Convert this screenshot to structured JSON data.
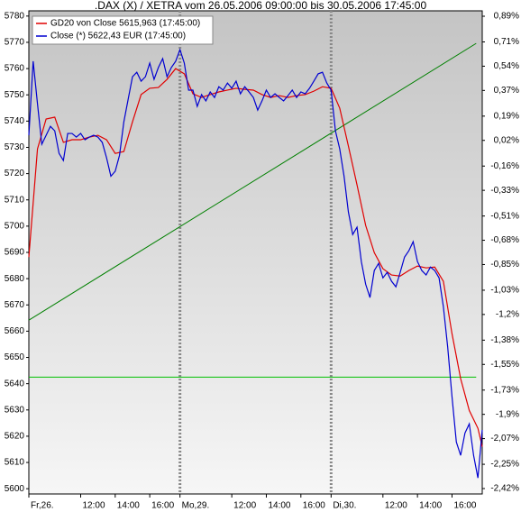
{
  "chart_data": {
    "type": "line",
    "title": ".DAX (X) / XETRA vom 26.05.2006 09:00:00 bis 30.05.2006 17:45:00",
    "series": [
      {
        "name": "GD20 von Close 5615,963 (17:45:00)",
        "color": "#e00000",
        "x": [
          0,
          0.5,
          1,
          1.5,
          2,
          2.5,
          3,
          3.5,
          4,
          4.5,
          5,
          5.5,
          6,
          6.5,
          7,
          7.5,
          8,
          8.5,
          9,
          9.5,
          10,
          10.5,
          11,
          11.5,
          12,
          12.5,
          13,
          13.5,
          14,
          14.5,
          15,
          15.5,
          16,
          16.5,
          17,
          17.5,
          18,
          18.5,
          19,
          19.5,
          20,
          20.5,
          21,
          21.5,
          22,
          22.5,
          23,
          23.5,
          24,
          24.5,
          25,
          25.5,
          26,
          26.25
        ],
        "values": [
          5688.2,
          5729.4,
          5740.8,
          5741.5,
          5731.9,
          5732.9,
          5732.9,
          5733.9,
          5734.6,
          5732.9,
          5727.7,
          5728.4,
          5739.7,
          5750.1,
          5752.5,
          5752.8,
          5755.9,
          5760,
          5758,
          5750.4,
          5749,
          5750.1,
          5751.1,
          5751.8,
          5752.5,
          5752.1,
          5751.8,
          5750.1,
          5749,
          5749.7,
          5749,
          5749.7,
          5750.1,
          5751.4,
          5753.1,
          5752.5,
          5744.9,
          5730.5,
          5715.7,
          5700.3,
          5689.9,
          5683.8,
          5681.4,
          5681,
          5683.1,
          5684.8,
          5684.1,
          5684.4,
          5679,
          5659,
          5641.9,
          5629.8,
          5623,
          5616
        ]
      },
      {
        "name": "Close (*) 5622,43 EUR (17:45:00)",
        "color": "#0000d0",
        "x": [
          0,
          0.25,
          0.5,
          0.75,
          1,
          1.25,
          1.5,
          1.75,
          2,
          2.25,
          2.5,
          2.75,
          3,
          3.25,
          3.5,
          3.75,
          4,
          4.25,
          4.5,
          4.75,
          5,
          5.25,
          5.5,
          5.75,
          6,
          6.25,
          6.5,
          6.75,
          7,
          7.25,
          7.5,
          7.75,
          8,
          8.25,
          8.5,
          8.75,
          9,
          9.25,
          9.5,
          9.75,
          10,
          10.25,
          10.5,
          10.75,
          11,
          11.25,
          11.5,
          11.75,
          12,
          12.25,
          12.5,
          12.75,
          13,
          13.25,
          13.5,
          13.75,
          14,
          14.25,
          14.5,
          14.75,
          15,
          15.25,
          15.5,
          15.75,
          16,
          16.25,
          16.5,
          16.75,
          17,
          17.25,
          17.5,
          17.75,
          18,
          18.25,
          18.5,
          18.75,
          19,
          19.25,
          19.5,
          19.75,
          20,
          20.25,
          20.5,
          20.75,
          21,
          21.25,
          21.5,
          21.75,
          22,
          22.25,
          22.5,
          22.75,
          23,
          23.25,
          23.5,
          23.75,
          24,
          24.25,
          24.5,
          24.75,
          25,
          25.25,
          25.5,
          25.75,
          26,
          26.25
        ],
        "values": [
          5734.6,
          5762.8,
          5746.6,
          5731.2,
          5734.6,
          5738,
          5736.3,
          5727.7,
          5725,
          5735.3,
          5735.3,
          5733.9,
          5735.3,
          5732.9,
          5733.9,
          5734.6,
          5733.9,
          5731.9,
          5726,
          5719,
          5720.9,
          5727,
          5739.7,
          5748.3,
          5756.9,
          5758.6,
          5755.2,
          5756.9,
          5762.1,
          5755.9,
          5760.4,
          5763.8,
          5756.9,
          5760.4,
          5762.8,
          5767.2,
          5762.1,
          5751.8,
          5751.8,
          5745.6,
          5750.1,
          5747.7,
          5751.1,
          5749,
          5753.1,
          5751.8,
          5754.5,
          5752.5,
          5755.2,
          5750.4,
          5753.1,
          5751.1,
          5749,
          5744.2,
          5747.7,
          5751.8,
          5749,
          5750.4,
          5749,
          5747.7,
          5749.7,
          5751.8,
          5749,
          5751.1,
          5750.4,
          5752.5,
          5755.2,
          5758,
          5758.6,
          5754.5,
          5751.8,
          5736.3,
          5729.4,
          5719,
          5705.4,
          5696.8,
          5699.6,
          5686.5,
          5677.9,
          5672.8,
          5683.1,
          5685.8,
          5680.3,
          5682.4,
          5679,
          5676.9,
          5682.4,
          5688.2,
          5690.6,
          5694.1,
          5686.5,
          5683.1,
          5681.4,
          5684.4,
          5683.1,
          5680.3,
          5669.3,
          5653.9,
          5635,
          5617.8,
          5612.7,
          5621.2,
          5624.7,
          5612.7,
          5604.1,
          5622.4
        ]
      }
    ],
    "lines": [
      {
        "color": "#008000",
        "x": [
          0,
          25.9
        ],
        "values": [
          5664.2,
          5769.6
        ]
      },
      {
        "color": "#00c000",
        "x": [
          0,
          25.9
        ],
        "values": [
          5642.5,
          5642.5
        ]
      }
    ],
    "xlim": [
      0,
      26.25
    ],
    "xticks": [
      {
        "value": 0,
        "label": "Fr,26."
      },
      {
        "value": 3,
        "label": "12:00"
      },
      {
        "value": 5,
        "label": "14:00"
      },
      {
        "value": 7,
        "label": "16:00"
      },
      {
        "value": 8.75,
        "label": "Mo,29."
      },
      {
        "value": 11.75,
        "label": "12:00"
      },
      {
        "value": 13.75,
        "label": "14:00"
      },
      {
        "value": 15.75,
        "label": "16:00"
      },
      {
        "value": 17.5,
        "label": "Di,30."
      },
      {
        "value": 20.5,
        "label": "12:00"
      },
      {
        "value": 22.5,
        "label": "14:00"
      },
      {
        "value": 24.5,
        "label": "16:00"
      }
    ],
    "separators": [
      8.75,
      17.5
    ],
    "ylim": [
      5598,
      5782
    ],
    "yticks": [
      5600,
      5610,
      5620,
      5630,
      5640,
      5650,
      5660,
      5670,
      5680,
      5690,
      5700,
      5710,
      5720,
      5730,
      5740,
      5750,
      5760,
      5770,
      5780
    ],
    "y2lim": [
      -2.458,
      0.928
    ],
    "y2ticks": [
      {
        "value": 0.89,
        "label": "0,89%"
      },
      {
        "value": 0.71,
        "label": "0,71%"
      },
      {
        "value": 0.54,
        "label": "0,54%"
      },
      {
        "value": 0.37,
        "label": "0,37%"
      },
      {
        "value": 0.19,
        "label": "0,19%"
      },
      {
        "value": 0.02,
        "label": "0,02%"
      },
      {
        "value": -0.16,
        "label": "-0,16%"
      },
      {
        "value": -0.33,
        "label": "-0,33%"
      },
      {
        "value": -0.51,
        "label": "-0,51%"
      },
      {
        "value": -0.68,
        "label": "-0,68%"
      },
      {
        "value": -0.85,
        "label": "-0,85%"
      },
      {
        "value": -1.03,
        "label": "-1,03%"
      },
      {
        "value": -1.2,
        "label": "-1,2%"
      },
      {
        "value": -1.38,
        "label": "-1,38%"
      },
      {
        "value": -1.55,
        "label": "-1,55%"
      },
      {
        "value": -1.73,
        "label": "-1,73%"
      },
      {
        "value": -1.9,
        "label": "-1,9%"
      },
      {
        "value": -2.07,
        "label": "-2,07%"
      },
      {
        "value": -2.25,
        "label": "-2,25%"
      },
      {
        "value": -2.42,
        "label": "-2,42%"
      }
    ],
    "legend": "upper left"
  }
}
